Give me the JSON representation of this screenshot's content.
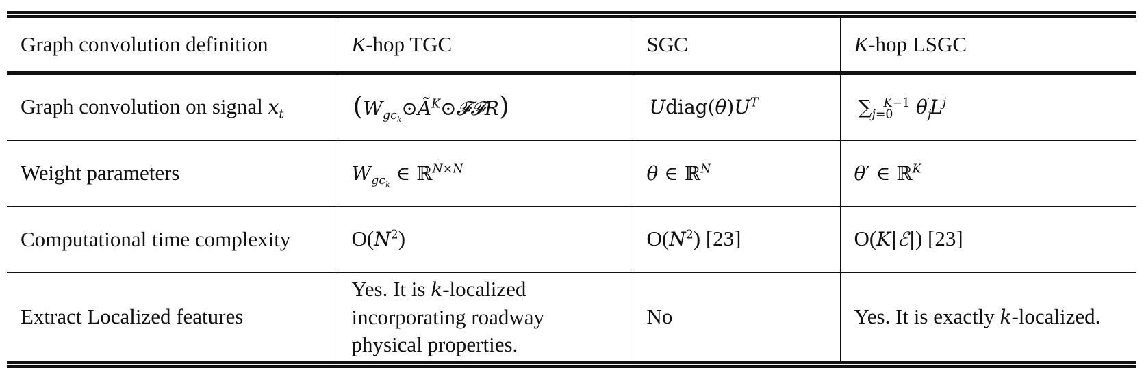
{
  "table": {
    "header": {
      "col1": "Graph convolution definition",
      "col2_var": "K",
      "col2_rest": "-hop TGC",
      "col3": "SGC",
      "col4_var": "K",
      "col4_rest": "-hop LSGC"
    },
    "rows": [
      {
        "label_text": "Graph convolution on signal ",
        "label_var": "x",
        "label_sub": "t",
        "tgc": "(W_{gc_k}⊙Ã^K⊙𝓕𝓕R)",
        "sgc": "Udiag(θ)U^T",
        "lsgc": "∑_{j=0}^{K−1} θ'_j L^j"
      },
      {
        "label": "Weight parameters",
        "tgc": "W_{gc_k} ∈ ℝ^{N×N}",
        "sgc": "θ ∈ ℝ^N",
        "lsgc": "θ' ∈ ℝ^K"
      },
      {
        "label": "Computational time complexity",
        "tgc": "O(N^2)",
        "sgc_main": "O(N^2)",
        "sgc_ref": " [23]",
        "lsgc_main": "O(K|ℰ|)",
        "lsgc_ref": " [23]"
      },
      {
        "label": "Extract Localized features",
        "tgc_line1_pre": "Yes. It is ",
        "tgc_line1_var": "k",
        "tgc_line1_post": "-localized",
        "tgc_line2": "incorporating roadway",
        "tgc_line3": "physical properties.",
        "sgc": "No",
        "lsgc_pre": "Yes. It is exactly ",
        "lsgc_var": "k",
        "lsgc_post": "-localized."
      }
    ]
  }
}
